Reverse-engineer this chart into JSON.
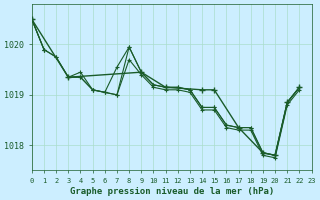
{
  "title": "Graphe pression niveau de la mer (hPa)",
  "bg_color": "#cceeff",
  "grid_color": "#aaddcc",
  "line_color": "#1a5c2a",
  "xlim": [
    0,
    23
  ],
  "ylim": [
    1017.5,
    1020.8
  ],
  "yticks": [
    1018,
    1019,
    1020
  ],
  "xticks": [
    0,
    1,
    2,
    3,
    4,
    5,
    6,
    7,
    8,
    9,
    10,
    11,
    12,
    13,
    14,
    15,
    16,
    17,
    18,
    19,
    20,
    21,
    22,
    23
  ],
  "series1": [
    1020.5,
    1019.9,
    1019.75,
    1019.35,
    1019.35,
    1019.1,
    1019.05,
    1019.0,
    1019.95,
    1019.45,
    1019.2,
    1019.15,
    1019.15,
    1019.1,
    1018.75,
    1018.75,
    1018.4,
    1018.35,
    1018.35,
    1017.85,
    1017.8,
    1018.85,
    1019.15,
    null
  ],
  "series2": [
    1020.5,
    1019.9,
    1019.75,
    1019.35,
    1019.35,
    1019.1,
    1019.05,
    1019.0,
    1019.7,
    1019.4,
    1019.15,
    1019.1,
    1019.1,
    1019.05,
    1018.7,
    1018.7,
    1018.35,
    1018.3,
    1018.3,
    1017.8,
    1017.75,
    1018.8,
    1019.1,
    null
  ],
  "series3": [
    1020.5,
    1019.9,
    null,
    1019.35,
    1019.45,
    1019.1,
    1019.05,
    1019.55,
    1019.95,
    1019.45,
    1019.2,
    1019.15,
    1019.15,
    1019.1,
    1018.75,
    1018.75,
    1018.4,
    1018.35,
    1018.35,
    1017.85,
    1017.8,
    1018.85,
    1019.15,
    null
  ],
  "series4_x": [
    0,
    3,
    9,
    11,
    14,
    15,
    17,
    19,
    20,
    21,
    22
  ],
  "series4_y": [
    1020.5,
    1019.35,
    1019.45,
    1019.15,
    1019.1,
    1019.1,
    1018.35,
    1017.85,
    1017.8,
    1018.85,
    1019.15
  ]
}
